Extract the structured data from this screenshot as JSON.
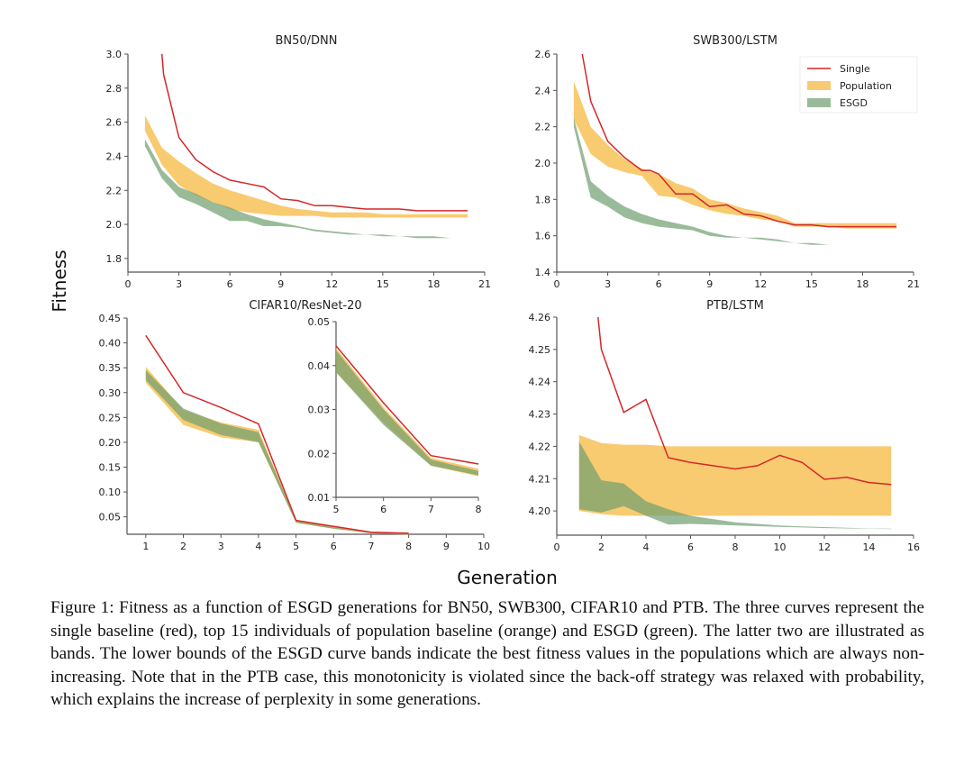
{
  "figure": {
    "ylabel": "Fitness",
    "xlabel": "Generation",
    "caption": "Figure 1: Fitness as a function of ESGD generations for BN50, SWB300, CIFAR10 and PTB. The three curves represent the single baseline (red), top 15 individuals of population baseline (orange) and ESGD (green). The latter two are illustrated as bands. The lower bounds of the ESGD curve bands indicate the best fitness values in the populations which are always non-increasing. Note that in the PTB case, this monotonicity is violated since the back-off strategy was relaxed with probability, which explains the increase of perplexity in some generations.",
    "colors": {
      "single": "#d62728",
      "population": "#f5b942",
      "esgd": "#6f9e6f"
    },
    "legend": [
      "Single",
      "Population",
      "ESGD"
    ]
  },
  "chart_data": [
    {
      "type": "line",
      "title": "BN50/DNN",
      "xlabel": "Generation",
      "ylabel": "Fitness",
      "xlim": [
        0,
        21
      ],
      "ylim": [
        1.72,
        3.0
      ],
      "xticks": [
        0,
        3,
        6,
        9,
        12,
        15,
        18,
        21
      ],
      "yticks": [
        1.8,
        2.0,
        2.2,
        2.4,
        2.6,
        2.8,
        3.0
      ],
      "ytick_labels": [
        "1.8",
        "2.0",
        "2.2",
        "2.4",
        "2.6",
        "2.8",
        "3.0"
      ],
      "legend": null,
      "series": [
        {
          "name": "Single",
          "kind": "line",
          "x": [
            2,
            2.1,
            3,
            4,
            5,
            6,
            7,
            8,
            9,
            10,
            11,
            12,
            13,
            14,
            15,
            16,
            17,
            18,
            19,
            20
          ],
          "y": [
            3.0,
            2.88,
            2.51,
            2.38,
            2.31,
            2.26,
            2.24,
            2.22,
            2.15,
            2.14,
            2.11,
            2.11,
            2.1,
            2.09,
            2.09,
            2.09,
            2.08,
            2.08,
            2.08,
            2.08
          ]
        },
        {
          "name": "Population",
          "kind": "band",
          "x": [
            1,
            2,
            3,
            4,
            5,
            6,
            7,
            8,
            9,
            10,
            11,
            12,
            13,
            14,
            15,
            16,
            17,
            18,
            19,
            20
          ],
          "upper": [
            2.64,
            2.45,
            2.37,
            2.3,
            2.24,
            2.2,
            2.17,
            2.14,
            2.11,
            2.09,
            2.08,
            2.07,
            2.07,
            2.07,
            2.06,
            2.06,
            2.06,
            2.06,
            2.06,
            2.06
          ],
          "lower": [
            2.55,
            2.35,
            2.23,
            2.17,
            2.13,
            2.09,
            2.07,
            2.06,
            2.05,
            2.05,
            2.05,
            2.04,
            2.04,
            2.04,
            2.04,
            2.04,
            2.04,
            2.04,
            2.04,
            2.04
          ]
        },
        {
          "name": "ESGD",
          "kind": "band",
          "x": [
            1,
            2,
            3,
            4,
            5,
            6,
            7,
            8,
            9,
            10,
            11,
            12,
            13,
            14,
            15,
            16,
            17,
            18,
            19,
            20
          ],
          "upper": [
            2.5,
            2.32,
            2.22,
            2.18,
            2.13,
            2.1,
            2.06,
            2.03,
            2.01,
            1.99,
            1.97,
            1.96,
            1.95,
            1.94,
            1.94,
            1.93,
            1.93,
            1.93,
            1.92,
            1.92
          ],
          "lower": [
            2.46,
            2.27,
            2.16,
            2.12,
            2.07,
            2.02,
            2.02,
            1.99,
            1.99,
            1.98,
            1.96,
            1.95,
            1.94,
            1.94,
            1.93,
            1.93,
            1.92,
            1.92,
            1.92,
            1.92
          ]
        }
      ]
    },
    {
      "type": "line",
      "title": "SWB300/LSTM",
      "xlabel": "Generation",
      "ylabel": "Fitness",
      "xlim": [
        0,
        21
      ],
      "ylim": [
        1.4,
        2.6
      ],
      "xticks": [
        0,
        3,
        6,
        9,
        12,
        15,
        18,
        21
      ],
      "yticks": [
        1.4,
        1.6,
        1.8,
        2.0,
        2.2,
        2.4,
        2.6
      ],
      "ytick_labels": [
        "1.4",
        "1.6",
        "1.8",
        "2.0",
        "2.2",
        "2.4",
        "2.6"
      ],
      "legend": "top-right",
      "series": [
        {
          "name": "Single",
          "kind": "line",
          "x": [
            1.5,
            2,
            3,
            4,
            5,
            5.5,
            6,
            7,
            8,
            9,
            10,
            11,
            12,
            13,
            14,
            15,
            16,
            17,
            18,
            19,
            20
          ],
          "y": [
            2.6,
            2.34,
            2.12,
            2.03,
            1.96,
            1.96,
            1.94,
            1.83,
            1.83,
            1.76,
            1.77,
            1.72,
            1.71,
            1.68,
            1.66,
            1.66,
            1.65,
            1.65,
            1.65,
            1.65,
            1.65
          ]
        },
        {
          "name": "Population",
          "kind": "band",
          "x": [
            1,
            2,
            3,
            4,
            5,
            6,
            7,
            8,
            9,
            10,
            11,
            12,
            13,
            14,
            15,
            16,
            17,
            18,
            19,
            20
          ],
          "upper": [
            2.45,
            2.2,
            2.1,
            2.02,
            1.97,
            1.94,
            1.89,
            1.86,
            1.8,
            1.78,
            1.75,
            1.73,
            1.71,
            1.67,
            1.67,
            1.67,
            1.67,
            1.67,
            1.67,
            1.67
          ],
          "lower": [
            2.24,
            2.05,
            1.98,
            1.95,
            1.93,
            1.82,
            1.81,
            1.77,
            1.74,
            1.72,
            1.71,
            1.69,
            1.68,
            1.65,
            1.65,
            1.65,
            1.64,
            1.64,
            1.64,
            1.64
          ]
        },
        {
          "name": "ESGD",
          "kind": "band",
          "x": [
            1,
            2,
            3,
            4,
            5,
            6,
            7,
            8,
            9,
            10,
            11,
            12,
            13,
            14,
            15,
            16,
            17,
            18,
            19,
            20
          ],
          "upper": [
            2.25,
            1.9,
            1.82,
            1.76,
            1.72,
            1.69,
            1.67,
            1.65,
            1.62,
            1.6,
            1.59,
            1.59,
            1.58,
            1.56,
            1.56,
            1.55,
            1.55,
            1.55,
            1.55,
            1.55
          ],
          "lower": [
            2.2,
            1.81,
            1.76,
            1.7,
            1.67,
            1.65,
            1.64,
            1.63,
            1.6,
            1.59,
            1.59,
            1.58,
            1.57,
            1.56,
            1.55,
            1.55,
            1.55,
            1.55,
            1.55,
            1.55
          ]
        }
      ]
    },
    {
      "type": "line",
      "title": "CIFAR10/ResNet-20",
      "xlabel": "Generation",
      "ylabel": "Fitness",
      "xlim": [
        0.5,
        10
      ],
      "ylim": [
        0.015,
        0.45
      ],
      "xticks": [
        1,
        2,
        3,
        4,
        5,
        6,
        7,
        8,
        9,
        10
      ],
      "yticks": [
        0.05,
        0.1,
        0.15,
        0.2,
        0.25,
        0.3,
        0.35,
        0.4,
        0.45
      ],
      "ytick_labels": [
        "0.05",
        "0.10",
        "0.15",
        "0.20",
        "0.25",
        "0.30",
        "0.35",
        "0.40",
        "0.45"
      ],
      "legend": null,
      "series": [
        {
          "name": "Single",
          "kind": "line",
          "x": [
            1,
            2,
            3,
            4,
            5,
            6,
            7,
            8
          ],
          "y": [
            0.415,
            0.3,
            0.27,
            0.237,
            0.043,
            0.031,
            0.019,
            0.017
          ]
        },
        {
          "name": "Population",
          "kind": "band",
          "x": [
            1,
            2,
            3,
            4,
            5,
            6,
            7,
            8
          ],
          "upper": [
            0.352,
            0.265,
            0.24,
            0.225,
            0.044,
            0.03,
            0.019,
            0.016
          ],
          "lower": [
            0.32,
            0.235,
            0.21,
            0.2,
            0.038,
            0.026,
            0.017,
            0.014
          ]
        },
        {
          "name": "ESGD",
          "kind": "band",
          "x": [
            1,
            2,
            3,
            4,
            5,
            6,
            7,
            8
          ],
          "upper": [
            0.345,
            0.268,
            0.238,
            0.22,
            0.044,
            0.029,
            0.018,
            0.016
          ],
          "lower": [
            0.325,
            0.245,
            0.215,
            0.2,
            0.038,
            0.026,
            0.017,
            0.015
          ]
        }
      ],
      "inset": {
        "xlim": [
          5,
          8
        ],
        "ylim": [
          0.01,
          0.05
        ],
        "xticks": [
          5,
          6,
          7,
          8
        ],
        "yticks": [
          0.01,
          0.02,
          0.03,
          0.04,
          0.05
        ],
        "ytick_labels": [
          "0.01",
          "0.02",
          "0.03",
          "0.04",
          "0.05"
        ],
        "series": [
          {
            "name": "Single",
            "kind": "line",
            "x": [
              5,
              6,
              7,
              8
            ],
            "y": [
              0.0445,
              0.0315,
              0.0195,
              0.0176
            ]
          },
          {
            "name": "Population",
            "kind": "band",
            "x": [
              5,
              6,
              7,
              8
            ],
            "upper": [
              0.044,
              0.0305,
              0.019,
              0.0165
            ],
            "lower": [
              0.0385,
              0.027,
              0.0172,
              0.0148
            ]
          },
          {
            "name": "ESGD",
            "kind": "band",
            "x": [
              5,
              6,
              7,
              8
            ],
            "upper": [
              0.0435,
              0.03,
              0.0186,
              0.016
            ],
            "lower": [
              0.0385,
              0.0265,
              0.0172,
              0.015
            ]
          }
        ]
      }
    },
    {
      "type": "line",
      "title": "PTB/LSTM",
      "xlabel": "Generation",
      "ylabel": "Fitness",
      "xlim": [
        0,
        16
      ],
      "ylim": [
        4.1925,
        4.26
      ],
      "xticks": [
        0,
        2,
        4,
        6,
        8,
        10,
        12,
        14,
        16
      ],
      "yticks": [
        4.2,
        4.21,
        4.22,
        4.23,
        4.24,
        4.25,
        4.26
      ],
      "ytick_labels": [
        "4.20",
        "4.21",
        "4.22",
        "4.23",
        "4.24",
        "4.25",
        "4.26"
      ],
      "legend": null,
      "series": [
        {
          "name": "Single",
          "kind": "line",
          "x": [
            1.85,
            2,
            3,
            4,
            5,
            6,
            7,
            8,
            9,
            10,
            11,
            12,
            13,
            14,
            15
          ],
          "y": [
            4.26,
            4.25,
            4.2305,
            4.2345,
            4.2165,
            4.215,
            4.214,
            4.213,
            4.214,
            4.2172,
            4.215,
            4.2098,
            4.2104,
            4.2088,
            4.2082
          ]
        },
        {
          "name": "Population",
          "kind": "band",
          "x": [
            1,
            2,
            3,
            4,
            5,
            6,
            7,
            8,
            9,
            10,
            11,
            12,
            13,
            14,
            15
          ],
          "upper": [
            4.2235,
            4.221,
            4.2205,
            4.2205,
            4.22,
            4.22,
            4.22,
            4.22,
            4.22,
            4.22,
            4.22,
            4.22,
            4.22,
            4.22,
            4.22
          ],
          "lower": [
            4.2,
            4.199,
            4.1985,
            4.1985,
            4.1985,
            4.1985,
            4.1985,
            4.1985,
            4.1985,
            4.1985,
            4.1985,
            4.1985,
            4.1985,
            4.1985,
            4.1985
          ]
        },
        {
          "name": "ESGD",
          "kind": "band",
          "x": [
            1,
            2,
            3,
            4,
            5,
            6,
            7,
            8,
            9,
            10,
            11,
            12,
            13,
            14,
            15
          ],
          "upper": [
            4.2215,
            4.2095,
            4.2085,
            4.203,
            4.2005,
            4.1985,
            4.1975,
            4.1965,
            4.196,
            4.1955,
            4.1952,
            4.195,
            4.1948,
            4.1946,
            4.1945
          ],
          "lower": [
            4.2005,
            4.1995,
            4.2015,
            4.1985,
            4.1958,
            4.196,
            4.1958,
            4.1955,
            4.1953,
            4.1951,
            4.1949,
            4.1947,
            4.1946,
            4.1945,
            4.1944
          ]
        }
      ]
    }
  ]
}
